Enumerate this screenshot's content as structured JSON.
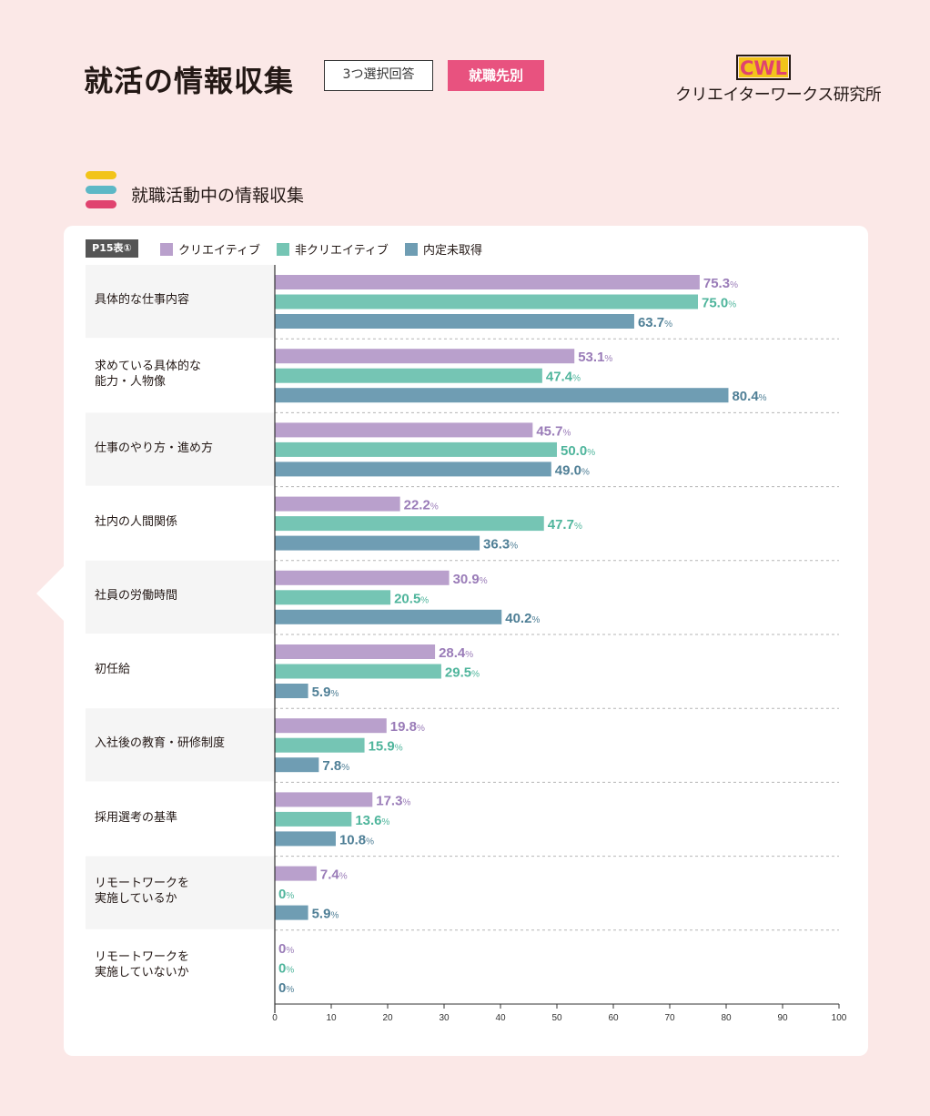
{
  "header": {
    "title": "就活の情報収集",
    "tag_note": "3つ選択回答",
    "tag_section": "就職先別",
    "logo_mark": "CWL",
    "logo_text": "クリエイターワークス研究所"
  },
  "section": {
    "subtitle": "就職活動中の情報収集"
  },
  "colors": {
    "creative": "#b9a0cc",
    "non_creative": "#75c5b4",
    "no_offer": "#6f9db3",
    "creative_text": "#9a7cb8",
    "non_creative_text": "#4fb59c",
    "no_offer_text": "#4f7f96",
    "accent_pink": "#e8527f",
    "stripe_yellow": "#f2c41a",
    "stripe_teal": "#5db8c6",
    "stripe_pink": "#e0436f"
  },
  "chart_data": {
    "type": "bar",
    "orientation": "horizontal",
    "table_id": "P15表①",
    "categories": [
      "具体的な仕事内容",
      "求めている具体的な\n能力・人物像",
      "仕事のやり方・進め方",
      "社内の人間関係",
      "社員の労働時間",
      "初任給",
      "入社後の教育・研修制度",
      "採用選考の基準",
      "リモートワークを\n実施しているか",
      "リモートワークを\n実施していないか"
    ],
    "series": [
      {
        "name": "クリエイティブ",
        "values": [
          75.3,
          53.1,
          45.7,
          22.2,
          30.9,
          28.4,
          19.8,
          17.3,
          7.4,
          0
        ],
        "labels": [
          "75.3",
          "53.1",
          "45.7",
          "22.2",
          "30.9",
          "28.4",
          "19.8",
          "17.3",
          "7.4",
          "0"
        ]
      },
      {
        "name": "非クリエイティブ",
        "values": [
          75.0,
          47.4,
          50.0,
          47.7,
          20.5,
          29.5,
          15.9,
          13.6,
          0,
          0
        ],
        "labels": [
          "75.0",
          "47.4",
          "50.0",
          "47.7",
          "20.5",
          "29.5",
          "15.9",
          "13.6",
          "0",
          "0"
        ]
      },
      {
        "name": "内定未取得",
        "values": [
          63.7,
          80.4,
          49.0,
          36.3,
          40.2,
          5.9,
          7.8,
          10.8,
          5.9,
          0
        ],
        "labels": [
          "63.7",
          "80.4",
          "49.0",
          "36.3",
          "40.2",
          "5.9",
          "7.8",
          "10.8",
          "5.9",
          "0"
        ]
      }
    ],
    "unit": "%",
    "xlim": [
      0,
      100
    ],
    "xticks": [
      "0",
      "10",
      "20",
      "30",
      "40",
      "50",
      "60",
      "70",
      "80",
      "90",
      "100"
    ],
    "legend_position": "top-left"
  }
}
